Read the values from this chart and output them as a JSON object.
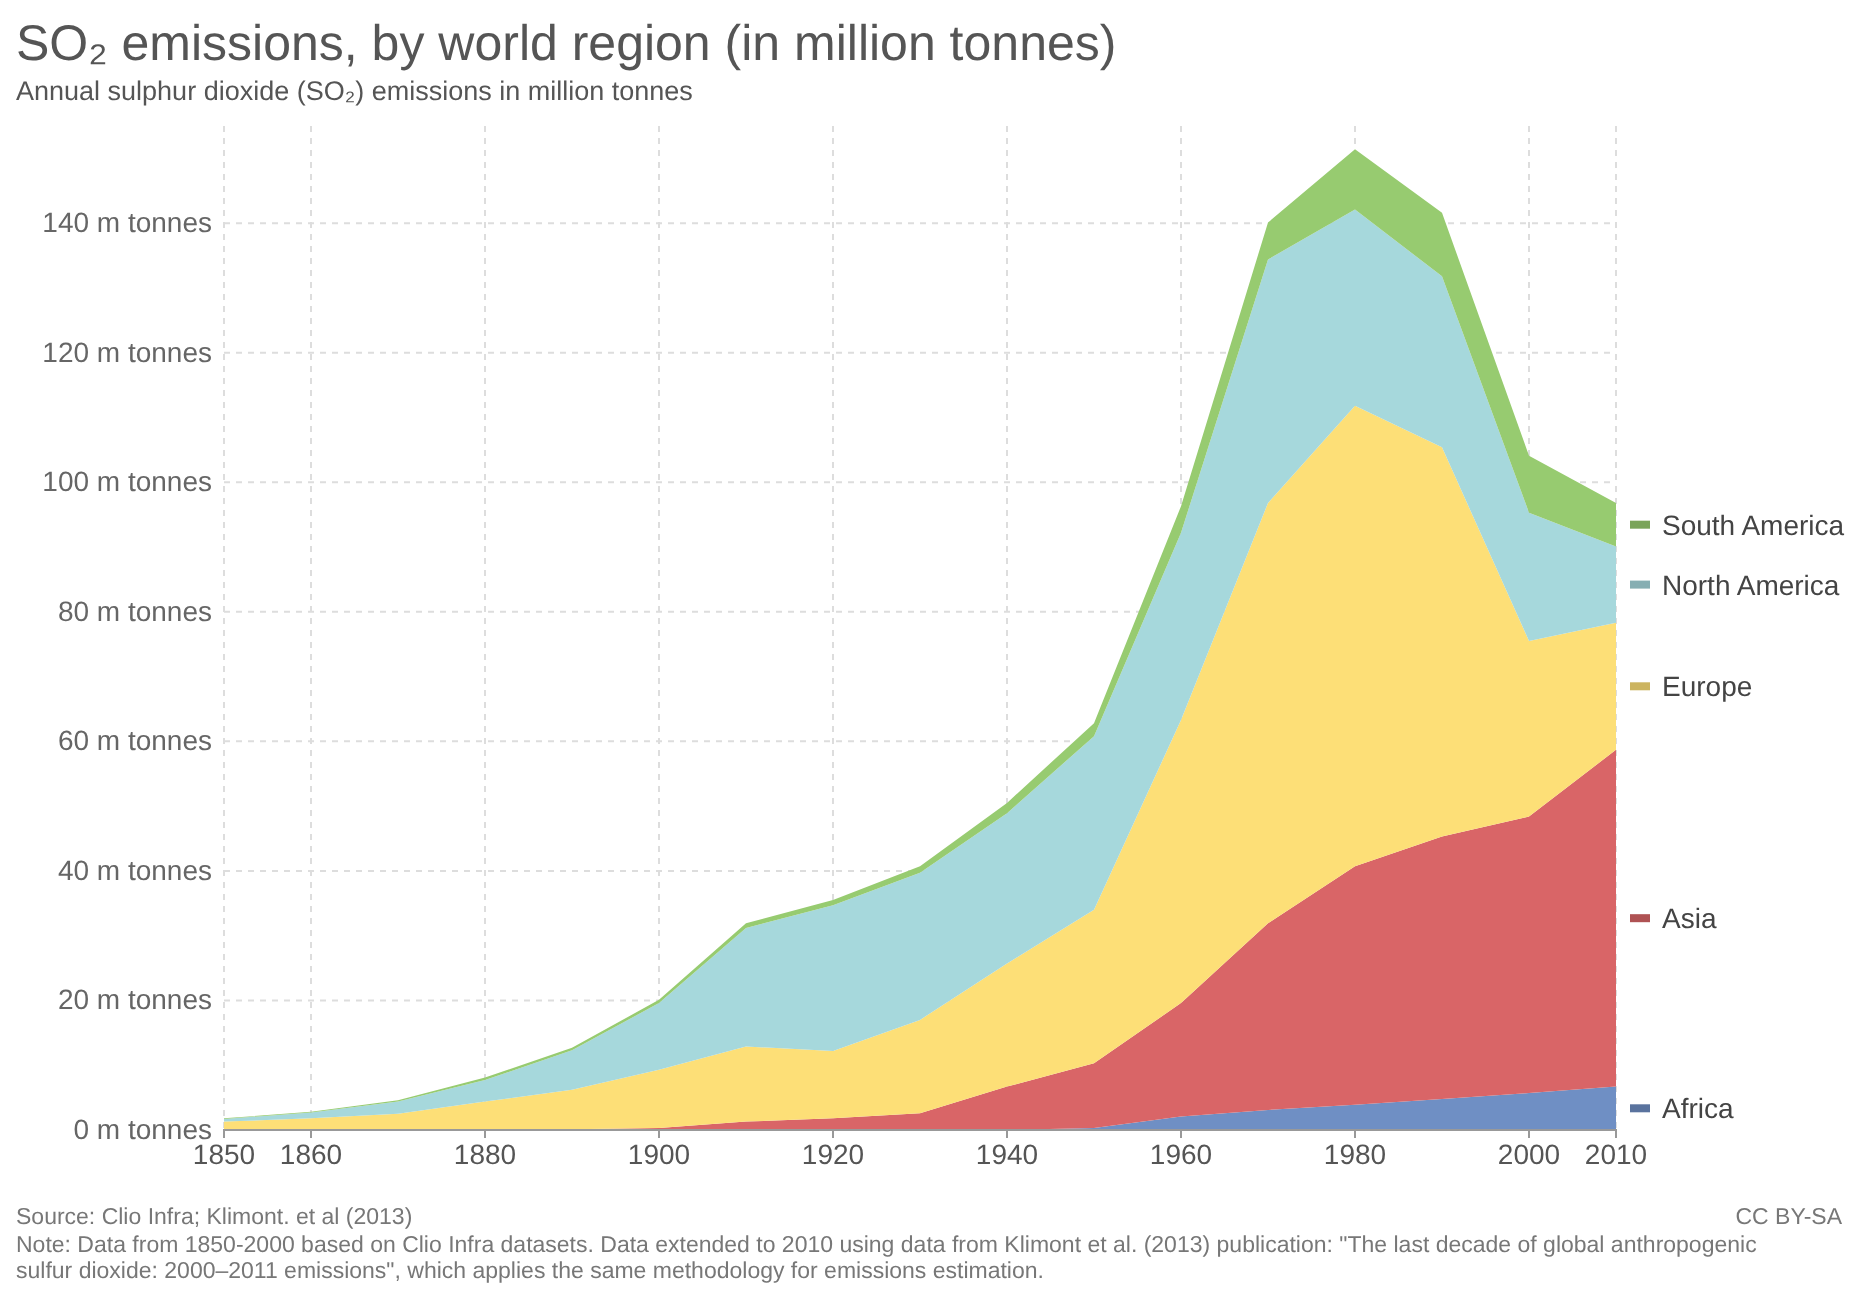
{
  "chart_data": {
    "type": "area",
    "stacked": true,
    "title": "SO₂ emissions, by world region (in million tonnes)",
    "subtitle": "Annual sulphur dioxide (SO₂) emissions in million tonnes",
    "x": [
      1850,
      1860,
      1870,
      1880,
      1890,
      1900,
      1910,
      1920,
      1930,
      1940,
      1950,
      1960,
      1970,
      1980,
      1990,
      2000,
      2010
    ],
    "series": [
      {
        "name": "Africa",
        "color": "#6f8fc4",
        "values": [
          0,
          0,
          0,
          0,
          0,
          0,
          0,
          0,
          0,
          0,
          0.3,
          2.1,
          3.1,
          3.9,
          4.8,
          5.7,
          6.7
        ]
      },
      {
        "name": "Asia",
        "color": "#d96567",
        "values": [
          0,
          0,
          0,
          0.1,
          0.1,
          0.3,
          1.3,
          1.8,
          2.6,
          6.7,
          10.0,
          17.5,
          28.8,
          36.8,
          40.5,
          42.7,
          52.0
        ]
      },
      {
        "name": "Europe",
        "color": "#fddf77",
        "values": [
          1.3,
          1.8,
          2.5,
          4.3,
          6.1,
          9.0,
          11.6,
          10.4,
          14.4,
          19.0,
          23.7,
          43.7,
          64.9,
          71.1,
          60.1,
          27.1,
          19.6
        ]
      },
      {
        "name": "North America",
        "color": "#a6d8dc",
        "values": [
          0.4,
          0.9,
          1.9,
          3.3,
          6.1,
          10.3,
          18.3,
          22.5,
          22.7,
          23.2,
          26.8,
          28.9,
          37.6,
          30.3,
          26.4,
          19.8,
          11.8
        ]
      },
      {
        "name": "South America",
        "color": "#97cb70",
        "values": [
          0.1,
          0.1,
          0.2,
          0.4,
          0.4,
          0.5,
          0.7,
          0.8,
          1.0,
          1.6,
          2.0,
          4.1,
          5.7,
          9.3,
          9.8,
          8.8,
          6.7
        ]
      }
    ],
    "xlim": [
      1850,
      2010
    ],
    "xticks": [
      1850,
      1860,
      1880,
      1900,
      1920,
      1940,
      1960,
      1980,
      2000,
      2010
    ],
    "ylim": [
      0,
      155
    ],
    "yticks": [
      {
        "value": 0,
        "label": "0 m tonnes"
      },
      {
        "value": 20,
        "label": "20 m tonnes"
      },
      {
        "value": 40,
        "label": "40 m tonnes"
      },
      {
        "value": 60,
        "label": "60 m tonnes"
      },
      {
        "value": 80,
        "label": "80 m tonnes"
      },
      {
        "value": 100,
        "label": "100 m tonnes"
      },
      {
        "value": 120,
        "label": "120 m tonnes"
      },
      {
        "value": 140,
        "label": "140 m tonnes"
      }
    ],
    "grid": true,
    "legend": "right",
    "annotations": [
      "Source: Clio Infra; Klimont. et al (2013)",
      "CC BY-SA",
      "Note: Data from 1850-2000 based on Clio Infra datasets. Data extended to 2010 using data from Klimont et al. (2013) publication: \"The last decade of global anthropogenic sulfur dioxide: 2000–2011 emissions\", which applies the same methodology for emissions estimation."
    ]
  }
}
